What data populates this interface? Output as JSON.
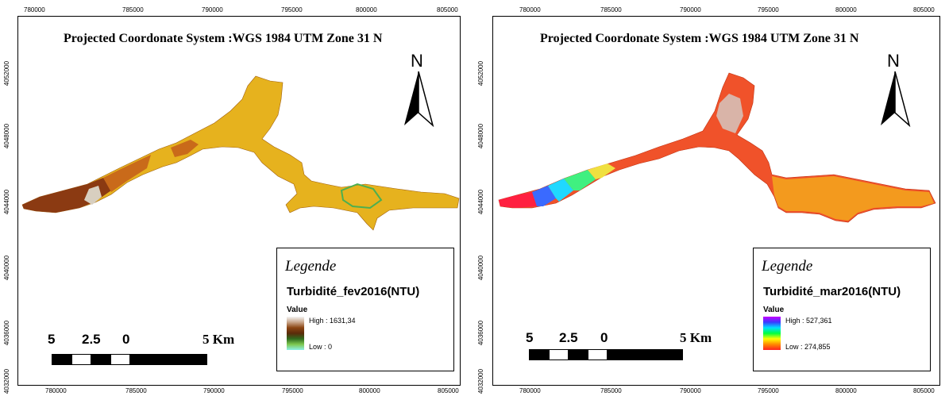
{
  "left_map": {
    "title": "Projected Coordonate System :WGS 1984 UTM Zone 31 N",
    "north_label": "N",
    "x_ticks": [
      "780000",
      "785000",
      "790000",
      "795000",
      "800000",
      "805000"
    ],
    "y_ticks": [
      "4052000",
      "4048000",
      "4044000",
      "4040000",
      "4036000",
      "4032000"
    ],
    "legend": {
      "heading": "Legende",
      "layer": "Turbidité_fev2016(NTU)",
      "value_label": "Value",
      "high": "High : 1631,34",
      "low": "Low : 0",
      "ramp_colors": [
        "#f4f4f4",
        "#c9a58a",
        "#8b4513",
        "#5a2a0a",
        "#2f6b1f",
        "#7ec850",
        "#8cf0e6"
      ]
    },
    "scale": {
      "labels": [
        "5",
        "2.5",
        "0",
        "5 Km"
      ]
    }
  },
  "right_map": {
    "title": "Projected Coordonate System :WGS 1984 UTM Zone 31 N",
    "north_label": "N",
    "x_ticks": [
      "780000",
      "785000",
      "790000",
      "795000",
      "800000",
      "805000"
    ],
    "y_ticks": [
      "4052000",
      "4048000",
      "4044000",
      "4040000",
      "4036000",
      "4032000"
    ],
    "legend": {
      "heading": "Legende",
      "layer": "Turbidité_mar2016(NTU)",
      "value_label": "Value",
      "high": "High : 527,361",
      "low": "Low : 274,855",
      "ramp_colors": [
        "#c800ff",
        "#3a3aff",
        "#00e0ff",
        "#00ff40",
        "#ffff00",
        "#ff8800",
        "#ff2020"
      ]
    },
    "scale": {
      "labels": [
        "5",
        "2.5",
        "0",
        "5 Km"
      ]
    }
  },
  "colors": {
    "left_fill": "#e6b21e",
    "left_dark": "#8b3a12",
    "left_mid": "#c96a1a",
    "right_fill": "#f0522a",
    "right_orange": "#f39a1e",
    "right_pale": "#d9b4a8"
  }
}
